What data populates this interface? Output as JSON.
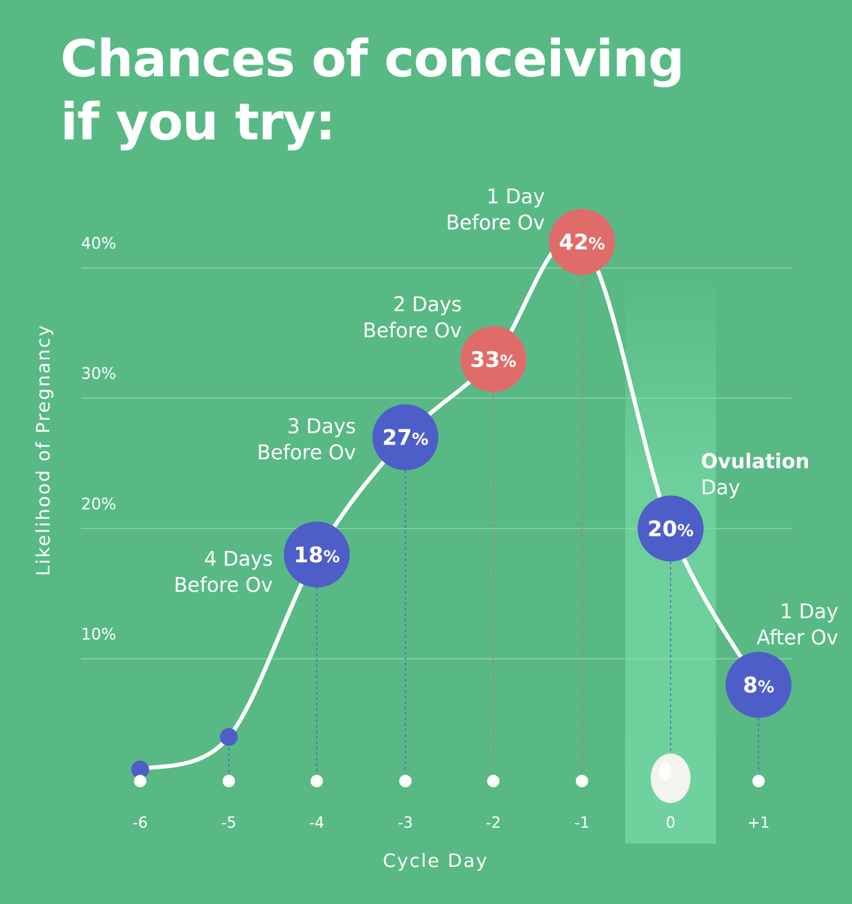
{
  "title": {
    "line1": "Chances of conceiving",
    "line2": "if you try:"
  },
  "chart_data": {
    "type": "line",
    "title": "Chances of conceiving if you try:",
    "xlabel": "Cycle Day",
    "ylabel": "Likelihood of Pregnancy",
    "x": [
      "-6",
      "-5",
      "-4",
      "-3",
      "-2",
      "-1",
      "0",
      "+1"
    ],
    "values": [
      1.5,
      4,
      18,
      27,
      33,
      42,
      20,
      8
    ],
    "ylim": [
      -7,
      42
    ],
    "yticks": [
      "10%",
      "20%",
      "30%",
      "40%"
    ],
    "ytick_values": [
      10,
      20,
      30,
      40
    ],
    "grid": true,
    "highlight_x": "0",
    "point_labels": [
      {
        "x": "-4",
        "value": "18",
        "lines": [
          "4 Days",
          "Before Ov"
        ],
        "color": "#4e5ec9"
      },
      {
        "x": "-3",
        "value": "27",
        "lines": [
          "3 Days",
          "Before Ov"
        ],
        "color": "#4e5ec9"
      },
      {
        "x": "-2",
        "value": "33",
        "lines": [
          "2 Days",
          "Before Ov"
        ],
        "color": "#e06c6a"
      },
      {
        "x": "-1",
        "value": "42",
        "lines": [
          "1 Day",
          "Before Ov"
        ],
        "color": "#e06c6a"
      },
      {
        "x": "0",
        "value": "20",
        "lines": [
          "Ovulation",
          "Day"
        ],
        "color": "#4e5ec9"
      },
      {
        "x": "+1",
        "value": "8",
        "lines": [
          "1 Day",
          "After Ov"
        ],
        "color": "#4e5ec9"
      }
    ],
    "colors": {
      "background": "#58b985",
      "curve": "#ffffff",
      "blue": "#4e5ec9",
      "red": "#e06c6a",
      "highlight": "#6fd29e"
    }
  }
}
